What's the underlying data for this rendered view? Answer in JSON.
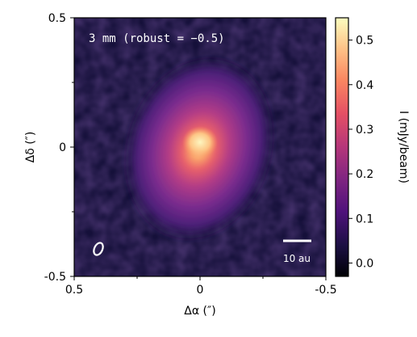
{
  "image": {
    "annotation": "3 mm (robust = −0.5)",
    "scale_bar_label": "10 au",
    "beam_symbol": "beam-ellipse",
    "x_axis": {
      "label": "Δα (″)",
      "ticks": [
        "0.5",
        "0",
        "-0.5"
      ],
      "range": [
        0.5,
        -0.5
      ]
    },
    "y_axis": {
      "label": "Δδ (″)",
      "ticks": [
        "0.5",
        "0",
        "-0.5"
      ],
      "range": [
        -0.5,
        0.5
      ]
    },
    "colorbar": {
      "label": "I (mJy/beam)",
      "ticks": [
        "0.0",
        "0.1",
        "0.2",
        "0.3",
        "0.4",
        "0.5"
      ],
      "range": [
        -0.03,
        0.55
      ],
      "colormap": "magma",
      "colors": [
        "#000004",
        "#1c1044",
        "#4f127b",
        "#812581",
        "#b5367a",
        "#e55064",
        "#fb8761",
        "#fec287",
        "#fcfdbf"
      ]
    },
    "background_color": "#1a1340"
  }
}
